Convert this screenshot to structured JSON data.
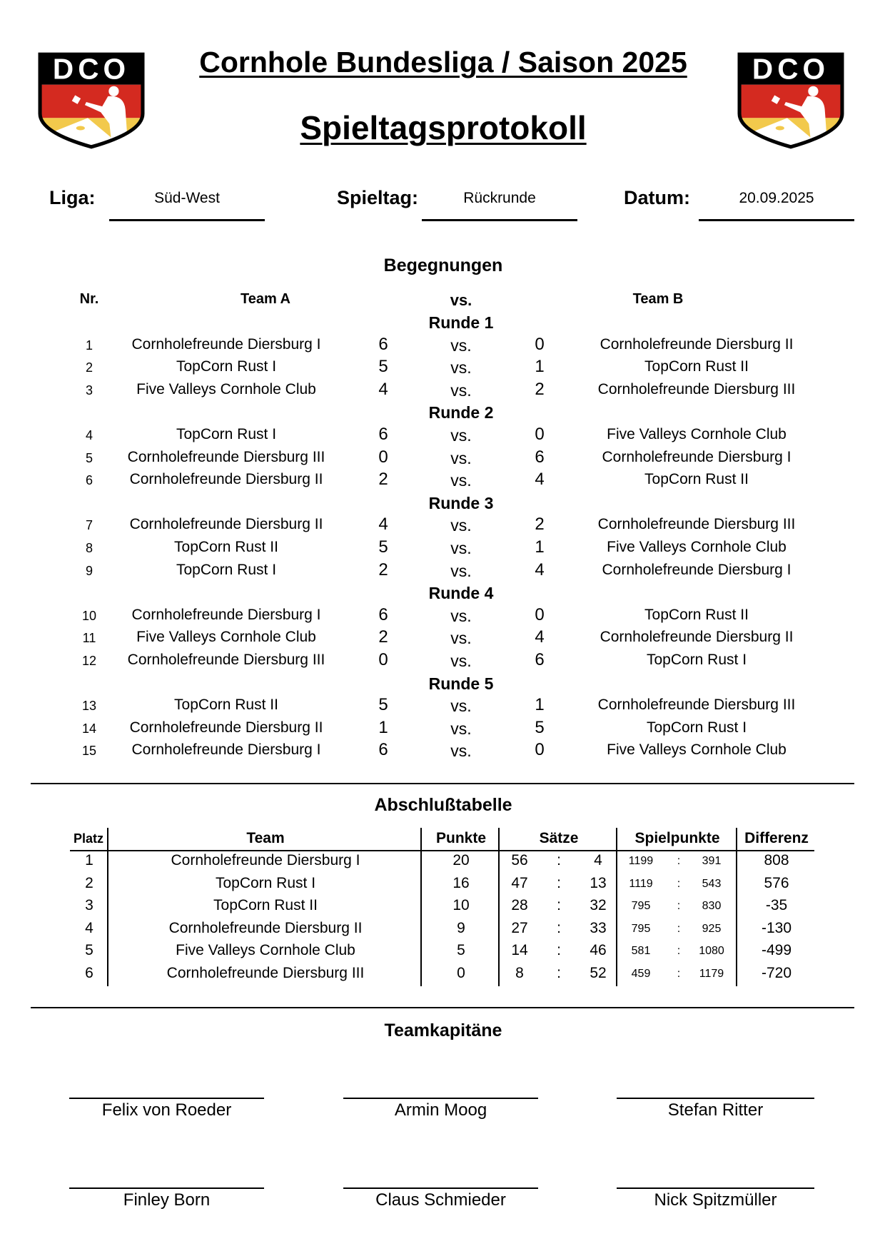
{
  "header": {
    "title": "Cornhole Bundesliga / Saison 2025",
    "subtitle": "Spieltagsprotokoll",
    "logo_text": "DCO",
    "logo_colors": {
      "black": "#000000",
      "red": "#d42a20",
      "gold": "#f2c94c"
    }
  },
  "info": {
    "liga_label": "Liga:",
    "liga_value": "Süd-West",
    "spieltag_label": "Spieltag:",
    "spieltag_value": "Rückrunde",
    "datum_label": "Datum:",
    "datum_value": "20.09.2025"
  },
  "matches": {
    "title": "Begegnungen",
    "col_nr": "Nr.",
    "col_team_a": "Team A",
    "col_vs": "vs.",
    "col_team_b": "Team B",
    "rounds": [
      {
        "label": "Runde 1",
        "games": [
          {
            "nr": "1",
            "team_a": "Cornholefreunde Diersburg I",
            "score_a": "6",
            "vs": "vs.",
            "score_b": "0",
            "team_b": "Cornholefreunde Diersburg II"
          },
          {
            "nr": "2",
            "team_a": "TopCorn Rust I",
            "score_a": "5",
            "vs": "vs.",
            "score_b": "1",
            "team_b": "TopCorn Rust II"
          },
          {
            "nr": "3",
            "team_a": "Five Valleys Cornhole Club",
            "score_a": "4",
            "vs": "vs.",
            "score_b": "2",
            "team_b": "Cornholefreunde Diersburg III"
          }
        ]
      },
      {
        "label": "Runde 2",
        "games": [
          {
            "nr": "4",
            "team_a": "TopCorn Rust I",
            "score_a": "6",
            "vs": "vs.",
            "score_b": "0",
            "team_b": "Five Valleys Cornhole Club"
          },
          {
            "nr": "5",
            "team_a": "Cornholefreunde Diersburg III",
            "score_a": "0",
            "vs": "vs.",
            "score_b": "6",
            "team_b": "Cornholefreunde Diersburg I"
          },
          {
            "nr": "6",
            "team_a": "Cornholefreunde Diersburg II",
            "score_a": "2",
            "vs": "vs.",
            "score_b": "4",
            "team_b": "TopCorn Rust II"
          }
        ]
      },
      {
        "label": "Runde 3",
        "games": [
          {
            "nr": "7",
            "team_a": "Cornholefreunde Diersburg II",
            "score_a": "4",
            "vs": "vs.",
            "score_b": "2",
            "team_b": "Cornholefreunde Diersburg III"
          },
          {
            "nr": "8",
            "team_a": "TopCorn Rust II",
            "score_a": "5",
            "vs": "vs.",
            "score_b": "1",
            "team_b": "Five Valleys Cornhole Club"
          },
          {
            "nr": "9",
            "team_a": "TopCorn Rust I",
            "score_a": "2",
            "vs": "vs.",
            "score_b": "4",
            "team_b": "Cornholefreunde Diersburg I"
          }
        ]
      },
      {
        "label": "Runde 4",
        "games": [
          {
            "nr": "10",
            "team_a": "Cornholefreunde Diersburg I",
            "score_a": "6",
            "vs": "vs.",
            "score_b": "0",
            "team_b": "TopCorn Rust II"
          },
          {
            "nr": "11",
            "team_a": "Five Valleys Cornhole Club",
            "score_a": "2",
            "vs": "vs.",
            "score_b": "4",
            "team_b": "Cornholefreunde Diersburg II"
          },
          {
            "nr": "12",
            "team_a": "Cornholefreunde Diersburg III",
            "score_a": "0",
            "vs": "vs.",
            "score_b": "6",
            "team_b": "TopCorn Rust I"
          }
        ]
      },
      {
        "label": "Runde 5",
        "games": [
          {
            "nr": "13",
            "team_a": "TopCorn Rust II",
            "score_a": "5",
            "vs": "vs.",
            "score_b": "1",
            "team_b": "Cornholefreunde Diersburg III"
          },
          {
            "nr": "14",
            "team_a": "Cornholefreunde Diersburg II",
            "score_a": "1",
            "vs": "vs.",
            "score_b": "5",
            "team_b": "TopCorn Rust I"
          },
          {
            "nr": "15",
            "team_a": "Cornholefreunde Diersburg I",
            "score_a": "6",
            "vs": "vs.",
            "score_b": "0",
            "team_b": "Five Valleys Cornhole Club"
          }
        ]
      }
    ]
  },
  "standings": {
    "title": "Abschlußtabelle",
    "headers": {
      "platz": "Platz",
      "team": "Team",
      "punkte": "Punkte",
      "saetze": "Sätze",
      "spielpunkte": "Spielpunkte",
      "differenz": "Differenz"
    },
    "rows": [
      {
        "platz": "1",
        "team": "Cornholefreunde Diersburg I",
        "punkte": "20",
        "s_won": "56",
        "s_lost": "4",
        "sp_won": "1199",
        "sp_lost": "391",
        "diff": "808"
      },
      {
        "platz": "2",
        "team": "TopCorn Rust I",
        "punkte": "16",
        "s_won": "47",
        "s_lost": "13",
        "sp_won": "1119",
        "sp_lost": "543",
        "diff": "576"
      },
      {
        "platz": "3",
        "team": "TopCorn Rust II",
        "punkte": "10",
        "s_won": "28",
        "s_lost": "32",
        "sp_won": "795",
        "sp_lost": "830",
        "diff": "-35"
      },
      {
        "platz": "4",
        "team": "Cornholefreunde Diersburg II",
        "punkte": "9",
        "s_won": "27",
        "s_lost": "33",
        "sp_won": "795",
        "sp_lost": "925",
        "diff": "-130"
      },
      {
        "platz": "5",
        "team": "Five Valleys Cornhole Club",
        "punkte": "5",
        "s_won": "14",
        "s_lost": "46",
        "sp_won": "581",
        "sp_lost": "1080",
        "diff": "-499"
      },
      {
        "platz": "6",
        "team": "Cornholefreunde Diersburg III",
        "punkte": "0",
        "s_won": "8",
        "s_lost": "52",
        "sp_won": "459",
        "sp_lost": "1179",
        "diff": "-720"
      }
    ],
    "separator": ":"
  },
  "captains": {
    "title": "Teamkapitäne",
    "names": [
      "Felix von Roeder",
      "Armin Moog",
      "Stefan Ritter",
      "Finley Born",
      "Claus Schmieder",
      "Nick Spitzmüller"
    ]
  }
}
